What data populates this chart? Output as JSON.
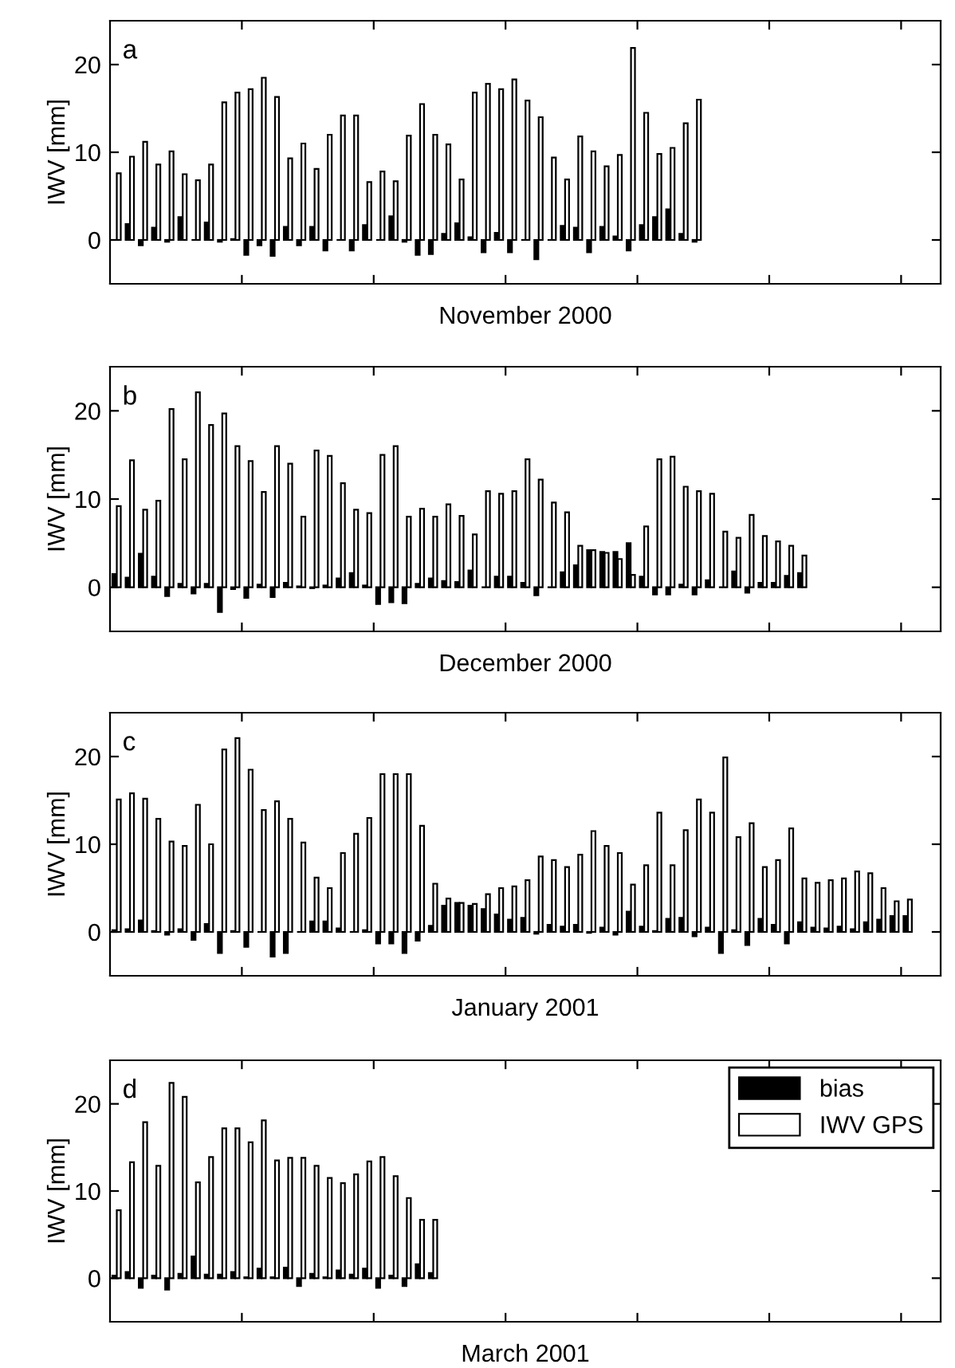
{
  "chart_data": [
    {
      "type": "bar",
      "xlabel": "November 2000",
      "ylabel": "IWV [mm]",
      "annotations": [
        "a"
      ],
      "legend": false,
      "grid": false,
      "categories": [
        null,
        null,
        null,
        null,
        null,
        null,
        null,
        null,
        null,
        null,
        null,
        null,
        null,
        null,
        null,
        null,
        null,
        null,
        null,
        null,
        null,
        null,
        null,
        null,
        null,
        null,
        null,
        null,
        null,
        null,
        null,
        null,
        null,
        null,
        null,
        null,
        null,
        null,
        null,
        null,
        null,
        null,
        null,
        null,
        null,
        null,
        null,
        null,
        null,
        null,
        null,
        null,
        null,
        null,
        null,
        null,
        null,
        null,
        null,
        null,
        null,
        null,
        null
      ],
      "ylim": [
        -5,
        25
      ],
      "yticks": [
        0,
        10,
        20
      ],
      "series": [
        {
          "color": "#000000",
          "values": [
            0.0,
            1.8,
            -0.6,
            1.4,
            -0.2,
            2.6,
            0.0,
            2.0,
            -0.2,
            0.1,
            -1.7,
            -0.6,
            -1.8,
            1.5,
            -0.6,
            1.5,
            -1.2,
            0.0,
            -1.2,
            1.7,
            0.0,
            2.7,
            -0.2,
            -1.7,
            -1.6,
            0.7,
            1.9,
            0.3,
            -1.4,
            0.8,
            -1.4,
            0.0,
            -2.2,
            0.0,
            1.6,
            1.4,
            -1.4,
            1.5,
            0.4,
            -1.2,
            1.7,
            2.6,
            3.5,
            0.7,
            -0.2,
            null,
            null,
            null,
            null,
            null,
            null,
            null,
            null,
            null,
            null,
            null,
            null,
            null,
            null,
            null,
            null,
            null,
            null
          ]
        },
        {
          "color": "#ffffff",
          "values": [
            7.6,
            9.5,
            11.2,
            8.6,
            10.1,
            7.5,
            6.8,
            8.6,
            15.7,
            16.8,
            17.2,
            18.5,
            16.3,
            9.3,
            11.0,
            8.1,
            12.0,
            14.2,
            14.2,
            6.6,
            7.8,
            6.7,
            11.9,
            15.5,
            12.0,
            10.9,
            6.9,
            16.8,
            17.8,
            17.2,
            18.3,
            15.9,
            14.0,
            9.4,
            6.9,
            11.8,
            10.1,
            8.4,
            9.7,
            21.9,
            14.5,
            9.8,
            10.5,
            13.3,
            16.0,
            null,
            null,
            null,
            null,
            null,
            null,
            null,
            null,
            null,
            null,
            null,
            null,
            null,
            null,
            null,
            null,
            null,
            null
          ]
        }
      ]
    },
    {
      "type": "bar",
      "xlabel": "December 2000",
      "ylabel": "IWV [mm]",
      "annotations": [
        "b"
      ],
      "legend": false,
      "grid": false,
      "categories": [
        null,
        null,
        null,
        null,
        null,
        null,
        null,
        null,
        null,
        null,
        null,
        null,
        null,
        null,
        null,
        null,
        null,
        null,
        null,
        null,
        null,
        null,
        null,
        null,
        null,
        null,
        null,
        null,
        null,
        null,
        null,
        null,
        null,
        null,
        null,
        null,
        null,
        null,
        null,
        null,
        null,
        null,
        null,
        null,
        null,
        null,
        null,
        null,
        null,
        null,
        null,
        null,
        null,
        null,
        null,
        null,
        null,
        null,
        null,
        null,
        null,
        null,
        null
      ],
      "ylim": [
        -5,
        25
      ],
      "yticks": [
        0,
        10,
        20
      ],
      "series": [
        {
          "color": "#000000",
          "values": [
            1.5,
            1.1,
            3.8,
            1.2,
            -1.0,
            0.4,
            -0.7,
            0.4,
            -2.8,
            -0.2,
            -1.2,
            0.3,
            -1.1,
            0.5,
            0.1,
            -0.1,
            0.2,
            1.0,
            1.6,
            0.2,
            -1.9,
            -1.7,
            -1.8,
            0.4,
            1.0,
            0.7,
            0.6,
            1.9,
            0.0,
            1.2,
            1.2,
            0.5,
            -0.9,
            0.0,
            1.7,
            2.5,
            4.2,
            4.0,
            4.0,
            5.0,
            1.2,
            -0.8,
            -0.8,
            0.3,
            -0.8,
            0.8,
            0.0,
            1.8,
            -0.6,
            0.5,
            0.5,
            1.3,
            1.6,
            null,
            null,
            null,
            null,
            null,
            null,
            null,
            null,
            null,
            null
          ]
        },
        {
          "color": "#ffffff",
          "values": [
            9.2,
            14.4,
            8.8,
            9.8,
            20.2,
            14.5,
            22.1,
            18.4,
            19.7,
            16.0,
            14.3,
            10.8,
            16.0,
            14.0,
            8.0,
            15.5,
            14.9,
            11.8,
            8.8,
            8.4,
            15.0,
            16.0,
            8.0,
            8.9,
            8.0,
            9.4,
            8.1,
            6.0,
            10.9,
            10.6,
            10.9,
            14.5,
            12.2,
            9.6,
            8.5,
            4.7,
            4.2,
            3.9,
            3.2,
            1.4,
            6.9,
            14.5,
            14.8,
            11.4,
            10.9,
            10.6,
            6.3,
            5.6,
            8.2,
            5.8,
            5.2,
            4.7,
            3.6,
            null,
            null,
            null,
            null,
            null,
            null,
            null,
            null,
            null,
            null
          ]
        }
      ]
    },
    {
      "type": "bar",
      "xlabel": "January 2001",
      "ylabel": "IWV [mm]",
      "annotations": [
        "c"
      ],
      "legend": false,
      "grid": false,
      "categories": [
        null,
        null,
        null,
        null,
        null,
        null,
        null,
        null,
        null,
        null,
        null,
        null,
        null,
        null,
        null,
        null,
        null,
        null,
        null,
        null,
        null,
        null,
        null,
        null,
        null,
        null,
        null,
        null,
        null,
        null,
        null,
        null,
        null,
        null,
        null,
        null,
        null,
        null,
        null,
        null,
        null,
        null,
        null,
        null,
        null,
        null,
        null,
        null,
        null,
        null,
        null,
        null,
        null,
        null,
        null,
        null,
        null,
        null,
        null,
        null,
        null,
        null,
        null
      ],
      "ylim": [
        -5,
        25
      ],
      "yticks": [
        0,
        10,
        20
      ],
      "series": [
        {
          "color": "#000000",
          "values": [
            0.2,
            0.3,
            1.3,
            0.1,
            -0.3,
            0.3,
            -0.9,
            0.9,
            -2.4,
            0.1,
            -1.7,
            0.0,
            -2.8,
            -2.4,
            0.0,
            1.2,
            1.2,
            0.4,
            0.0,
            0.2,
            -1.3,
            -1.3,
            -2.4,
            -1.0,
            0.7,
            3.0,
            3.3,
            3.0,
            2.6,
            2.0,
            1.4,
            1.6,
            -0.2,
            0.8,
            0.6,
            0.8,
            -0.1,
            0.5,
            -0.3,
            2.3,
            0.6,
            0.1,
            1.5,
            1.6,
            -0.5,
            0.5,
            -2.4,
            0.2,
            -1.5,
            1.5,
            0.8,
            -1.3,
            1.1,
            0.5,
            0.4,
            0.6,
            0.3,
            1.1,
            1.4,
            1.8,
            1.8,
            null,
            null
          ]
        },
        {
          "color": "#ffffff",
          "values": [
            15.1,
            15.8,
            15.2,
            12.9,
            10.3,
            9.8,
            14.5,
            10.0,
            20.8,
            22.1,
            18.5,
            13.9,
            14.9,
            12.9,
            10.2,
            6.2,
            5.0,
            9.0,
            11.2,
            13.0,
            18.0,
            18.0,
            18.0,
            12.1,
            5.5,
            3.8,
            3.3,
            3.2,
            4.3,
            5.0,
            5.2,
            5.9,
            8.6,
            8.2,
            7.4,
            8.8,
            11.5,
            9.8,
            9.0,
            5.4,
            7.6,
            13.6,
            7.6,
            11.6,
            15.1,
            13.6,
            19.9,
            10.8,
            12.4,
            7.4,
            8.2,
            11.8,
            6.1,
            5.6,
            5.9,
            6.1,
            6.9,
            6.7,
            5.0,
            3.5,
            3.7,
            null,
            null
          ]
        }
      ]
    },
    {
      "type": "bar",
      "xlabel": "March 2001",
      "ylabel": "IWV [mm]",
      "annotations": [
        "d"
      ],
      "legend": "top right",
      "grid": false,
      "categories": [
        null,
        null,
        null,
        null,
        null,
        null,
        null,
        null,
        null,
        null,
        null,
        null,
        null,
        null,
        null,
        null,
        null,
        null,
        null,
        null,
        null,
        null,
        null,
        null,
        null,
        null,
        null,
        null,
        null,
        null,
        null,
        null,
        null,
        null,
        null,
        null,
        null,
        null,
        null,
        null,
        null,
        null,
        null,
        null,
        null,
        null,
        null,
        null,
        null,
        null,
        null,
        null,
        null,
        null,
        null,
        null,
        null,
        null,
        null,
        null,
        null,
        null,
        null
      ],
      "ylim": [
        -5,
        25
      ],
      "yticks": [
        0,
        10,
        20
      ],
      "series": [
        {
          "name": "bias",
          "color": "#000000",
          "values": [
            0.3,
            0.7,
            -1.1,
            0.3,
            -1.3,
            0.5,
            2.5,
            0.4,
            0.4,
            0.7,
            0.1,
            1.1,
            0.1,
            1.2,
            -0.9,
            0.5,
            0.1,
            0.9,
            0.4,
            1.1,
            -1.1,
            0.3,
            -0.9,
            1.6,
            0.6,
            null,
            null,
            null,
            null,
            null,
            null,
            null,
            null,
            null,
            null,
            null,
            null,
            null,
            null,
            null,
            null,
            null,
            null,
            null,
            null,
            null,
            null,
            null,
            null,
            null,
            null,
            null,
            null,
            null,
            null,
            null,
            null,
            null,
            null,
            null,
            null,
            null,
            null
          ]
        },
        {
          "name": "IWV GPS",
          "color": "#ffffff",
          "values": [
            7.8,
            13.3,
            17.9,
            12.9,
            22.4,
            20.8,
            11.0,
            13.9,
            17.2,
            17.2,
            15.6,
            18.1,
            13.5,
            13.8,
            13.8,
            12.9,
            11.5,
            10.9,
            11.9,
            13.4,
            13.9,
            11.7,
            9.2,
            6.7,
            6.7,
            null,
            null,
            null,
            null,
            null,
            null,
            null,
            null,
            null,
            null,
            null,
            null,
            null,
            null,
            null,
            null,
            null,
            null,
            null,
            null,
            null,
            null,
            null,
            null,
            null,
            null,
            null,
            null,
            null,
            null,
            null,
            null,
            null,
            null,
            null,
            null,
            null,
            null
          ]
        }
      ]
    }
  ]
}
